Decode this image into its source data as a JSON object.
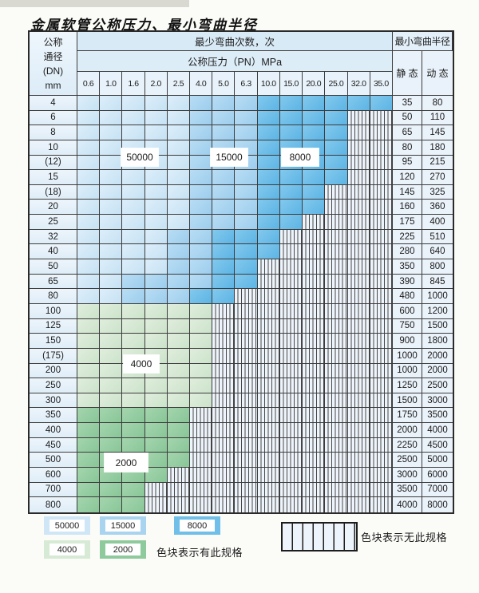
{
  "title": "金属软管公称压力、最小弯曲半径",
  "table": {
    "corner_header": {
      "line1": "公称",
      "line2": "通径",
      "line3": "(DN)",
      "line4": "mm"
    },
    "bend_cycles_header": "最少弯曲次数，次",
    "pressure_header": "公称压力（PN）MPa",
    "radius_header": "最小弯曲半径",
    "static_header": "静 态",
    "dynamic_header": "动 态",
    "pressure_columns": [
      "0.6",
      "1.0",
      "1.6",
      "2.0",
      "2.5",
      "4.0",
      "5.0",
      "6.3",
      "10.0",
      "15.0",
      "20.0",
      "25.0",
      "32.0",
      "35.0"
    ],
    "rows": [
      {
        "dn": "4",
        "cells": "LLLLLMMMDDDDDD",
        "static": "35",
        "dynamic": "80"
      },
      {
        "dn": "6",
        "cells": "LLLLLMMMDDDDHH",
        "static": "50",
        "dynamic": "110"
      },
      {
        "dn": "8",
        "cells": "LLLLLMMMDDDDHH",
        "static": "65",
        "dynamic": "145"
      },
      {
        "dn": "10",
        "cells": "LLLLLMMMDDDDHH",
        "static": "80",
        "dynamic": "180"
      },
      {
        "dn": "(12)",
        "cells": "LLLLLMMMDDDDHH",
        "static": "95",
        "dynamic": "215"
      },
      {
        "dn": "15",
        "cells": "LLLLLMMMDDDDHH",
        "static": "120",
        "dynamic": "270"
      },
      {
        "dn": "(18)",
        "cells": "LLLLLMMMDDDHHH",
        "static": "145",
        "dynamic": "325"
      },
      {
        "dn": "20",
        "cells": "LLLLLMMMDDDHHH",
        "static": "160",
        "dynamic": "360"
      },
      {
        "dn": "25",
        "cells": "LLLLLMMMDDHHHH",
        "static": "175",
        "dynamic": "400"
      },
      {
        "dn": "32",
        "cells": "LLLLMMDDDHHHHH",
        "static": "225",
        "dynamic": "510"
      },
      {
        "dn": "40",
        "cells": "LLLLMMDDDHHHHH",
        "static": "280",
        "dynamic": "640"
      },
      {
        "dn": "50",
        "cells": "LLLLMMDDHHHHHH",
        "static": "350",
        "dynamic": "800"
      },
      {
        "dn": "65",
        "cells": "LLMMMMDDHHHHHH",
        "static": "390",
        "dynamic": "845"
      },
      {
        "dn": "80",
        "cells": "LLMMMDDHHHHHHH",
        "static": "480",
        "dynamic": "1000"
      },
      {
        "dn": "100",
        "cells": "GGGGGGHHHHHHHH",
        "static": "600",
        "dynamic": "1200"
      },
      {
        "dn": "125",
        "cells": "GGGGGGHHHHHHHH",
        "static": "750",
        "dynamic": "1500"
      },
      {
        "dn": "150",
        "cells": "GGGGGGHHHHHHHH",
        "static": "900",
        "dynamic": "1800"
      },
      {
        "dn": "(175)",
        "cells": "GGGGGGHHHHHHHH",
        "static": "1000",
        "dynamic": "2000"
      },
      {
        "dn": "200",
        "cells": "GGGGGGHHHHHHHH",
        "static": "1000",
        "dynamic": "2000"
      },
      {
        "dn": "250",
        "cells": "GGGGGGHHHHHHHH",
        "static": "1250",
        "dynamic": "2500"
      },
      {
        "dn": "300",
        "cells": "GGGGGGHHHHHHHH",
        "static": "1500",
        "dynamic": "3000"
      },
      {
        "dn": "350",
        "cells": "EEEEEHHHHHHHHH",
        "static": "1750",
        "dynamic": "3500"
      },
      {
        "dn": "400",
        "cells": "EEEEEHHHHHHHHH",
        "static": "2000",
        "dynamic": "4000"
      },
      {
        "dn": "450",
        "cells": "EEEEEHHHHHHHHH",
        "static": "2250",
        "dynamic": "4500"
      },
      {
        "dn": "500",
        "cells": "EEEEEHHHHHHHHH",
        "static": "2500",
        "dynamic": "5000"
      },
      {
        "dn": "600",
        "cells": "EEEEHHHHHHHHHH",
        "static": "3000",
        "dynamic": "6000"
      },
      {
        "dn": "700",
        "cells": "EEEHHHHHHHHHHH",
        "static": "3500",
        "dynamic": "7000"
      },
      {
        "dn": "800",
        "cells": "EEEHHHHHHHHHHH",
        "static": "4000",
        "dynamic": "8000"
      }
    ]
  },
  "cell_categories": {
    "L": "50000",
    "M": "15000",
    "D": "8000",
    "G": "4000",
    "E": "2000",
    "H": "no-spec"
  },
  "region_labels": [
    "50000",
    "15000",
    "8000",
    "4000",
    "2000"
  ],
  "legend": {
    "items": [
      {
        "label": "50000",
        "color": "#cfe6f6"
      },
      {
        "label": "15000",
        "color": "#a9d4f0"
      },
      {
        "label": "8000",
        "color": "#6fbfe9"
      },
      {
        "label": "4000",
        "color": "#d7ead5"
      },
      {
        "label": "2000",
        "color": "#8fca9d"
      }
    ],
    "has_spec_text": "色块表示有此规格",
    "no_spec_text": "色块表示无此规格"
  },
  "colors": {
    "cycles_50000": "#cfe6f6",
    "cycles_15000": "#a9d4f0",
    "cycles_8000": "#6fbfe9",
    "cycles_4000": "#d7ead5",
    "cycles_2000": "#8fca9d",
    "hatch_bg": "#eef4fb",
    "grid_line": "#3c3c3c"
  }
}
